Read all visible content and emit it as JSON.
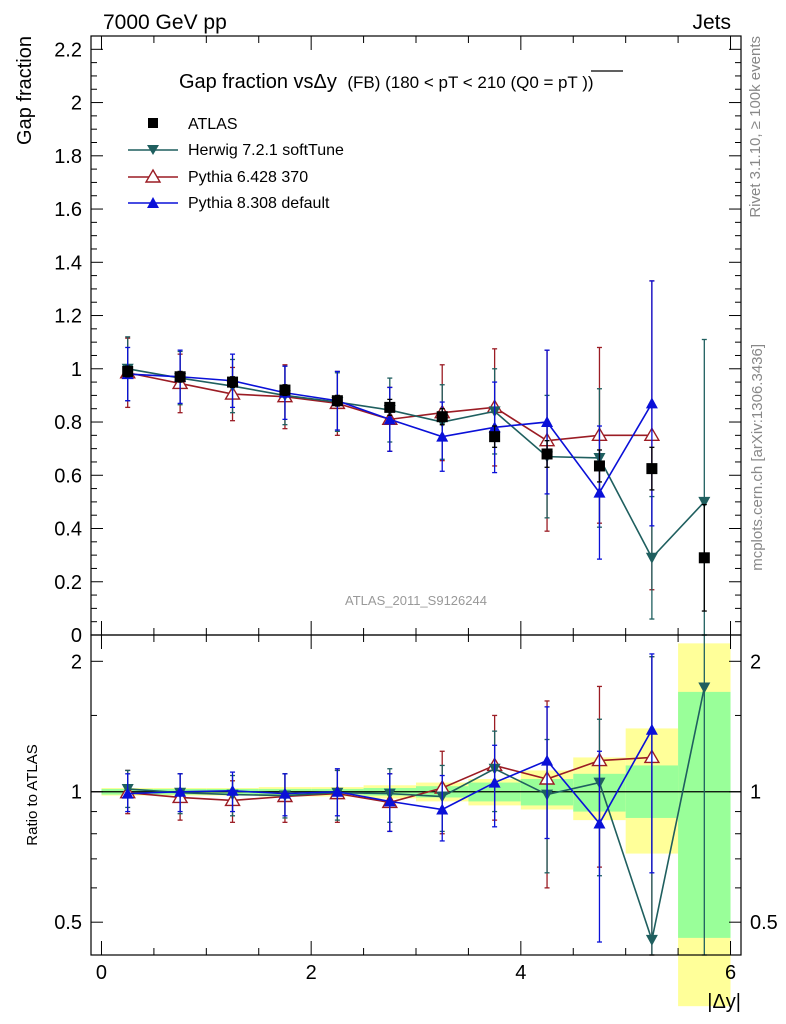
{
  "header": {
    "left": "7000 GeV pp",
    "right": "Jets"
  },
  "title": {
    "main": "Gap fraction vsΔy",
    "sub": "(FB) (180 < pT < 210 (Q0 =",
    "pt": "pT",
    "close": "))"
  },
  "side_labels": {
    "rivet": "Rivet 3.1.10, ≥ 100k events",
    "mcplots": "mcplots.cern.ch [arXiv:1306.3436]"
  },
  "watermark": "ATLAS_2011_S9126244",
  "colors": {
    "atlas": "#000000",
    "herwig": "#1f5f5f",
    "pythia6": "#9b1c24",
    "pythia8": "#0a10d8",
    "band_inner": "#99ff99",
    "band_outer": "#ffff99"
  },
  "chart_data": [
    {
      "type": "scatter",
      "panel": "main",
      "ylabel": "Gap fraction",
      "xlim": [
        -0.1,
        6.1
      ],
      "ylim": [
        0,
        2.25
      ],
      "yticks": [
        "0",
        "0.2",
        "0.4",
        "0.6",
        "0.8",
        "1",
        "1.2",
        "1.4",
        "1.6",
        "1.8",
        "2",
        "2.2"
      ],
      "x": [
        0.25,
        0.75,
        1.25,
        1.75,
        2.25,
        2.75,
        3.25,
        3.75,
        4.25,
        4.75,
        5.25,
        5.75
      ],
      "series": [
        {
          "name": "ATLAS",
          "marker": "square",
          "values": [
            0.99,
            0.97,
            0.95,
            0.92,
            0.88,
            0.855,
            0.82,
            0.745,
            0.68,
            0.635,
            0.625,
            0.29
          ],
          "err": [
            0.02,
            0.02,
            0.02,
            0.02,
            0.02,
            0.03,
            0.03,
            0.04,
            0.05,
            0.06,
            0.08,
            0.2
          ]
        },
        {
          "name": "Herwig 7.2.1 softTune",
          "marker": "triangle-down",
          "values": [
            1.0,
            0.965,
            0.935,
            0.9,
            0.875,
            0.845,
            0.8,
            0.84,
            0.67,
            0.665,
            0.29,
            0.5
          ],
          "err": [
            0.12,
            0.1,
            0.1,
            0.11,
            0.11,
            0.12,
            0.14,
            0.16,
            0.23,
            0.26,
            0.23,
            0.61
          ]
        },
        {
          "name": "Pythia 6.428 370",
          "marker": "triangle-open",
          "values": [
            0.985,
            0.945,
            0.905,
            0.895,
            0.87,
            0.81,
            0.835,
            0.855,
            0.73,
            0.75,
            0.75,
            null
          ],
          "err": [
            0.13,
            0.11,
            0.1,
            0.12,
            0.12,
            0.12,
            0.18,
            0.22,
            0.34,
            0.33,
            0.58,
            0
          ]
        },
        {
          "name": "Pythia 8.308 default",
          "marker": "triangle-up",
          "values": [
            0.98,
            0.97,
            0.955,
            0.91,
            0.88,
            0.81,
            0.745,
            0.78,
            0.8,
            0.535,
            0.87,
            null
          ],
          "err": [
            0.1,
            0.1,
            0.1,
            0.1,
            0.11,
            0.12,
            0.13,
            0.17,
            0.27,
            0.25,
            0.46,
            0
          ]
        }
      ]
    },
    {
      "type": "scatter",
      "panel": "ratio",
      "ylabel": "Ratio to ATLAS",
      "xlabel": "|Δy|",
      "xlim": [
        -0.1,
        6.1
      ],
      "ylim": [
        0.42,
        2.3
      ],
      "log_y": true,
      "yticks": [
        "0.5",
        "1",
        "2"
      ],
      "xticks": [
        "0",
        "2",
        "4",
        "6"
      ],
      "x": [
        0.25,
        0.75,
        1.25,
        1.75,
        2.25,
        2.75,
        3.25,
        3.75,
        4.25,
        4.75,
        5.25,
        5.75
      ],
      "band_inner": [
        [
          0.985,
          1.015
        ],
        [
          0.985,
          1.015
        ],
        [
          0.985,
          1.015
        ],
        [
          0.985,
          1.015
        ],
        [
          0.985,
          1.015
        ],
        [
          0.98,
          1.02
        ],
        [
          0.97,
          1.03
        ],
        [
          0.95,
          1.05
        ],
        [
          0.93,
          1.07
        ],
        [
          0.9,
          1.1
        ],
        [
          0.87,
          1.15
        ],
        [
          0.46,
          1.7
        ]
      ],
      "band_outer": [
        [
          0.98,
          1.02
        ],
        [
          0.98,
          1.02
        ],
        [
          0.98,
          1.02
        ],
        [
          0.975,
          1.025
        ],
        [
          0.975,
          1.025
        ],
        [
          0.965,
          1.035
        ],
        [
          0.95,
          1.05
        ],
        [
          0.93,
          1.07
        ],
        [
          0.91,
          1.12
        ],
        [
          0.86,
          1.2
        ],
        [
          0.72,
          1.4
        ],
        [
          0.32,
          2.2
        ]
      ],
      "series": [
        {
          "name": "Herwig 7.2.1 softTune",
          "values": [
            1.015,
            0.995,
            0.985,
            0.98,
            0.995,
            0.99,
            0.975,
            1.13,
            0.985,
            1.05,
            0.455,
            1.74
          ],
          "lo": [
            0.92,
            0.89,
            0.88,
            0.87,
            0.86,
            0.85,
            0.81,
            0.9,
            0.65,
            0.64,
            0.2,
            0.2
          ],
          "hi": [
            1.12,
            1.1,
            1.09,
            1.1,
            1.12,
            1.13,
            1.15,
            1.38,
            1.32,
            1.47,
            2.05,
            3.0
          ]
        },
        {
          "name": "Pythia 6.428 370",
          "values": [
            0.995,
            0.97,
            0.955,
            0.975,
            0.99,
            0.945,
            1.02,
            1.15,
            1.07,
            1.18,
            1.2,
            null
          ],
          "lo": [
            0.89,
            0.86,
            0.85,
            0.85,
            0.85,
            0.81,
            0.8,
            0.86,
            0.6,
            0.67,
            0.2,
            null
          ],
          "hi": [
            1.12,
            1.1,
            1.06,
            1.1,
            1.12,
            1.1,
            1.24,
            1.5,
            1.62,
            1.75,
            2.05,
            null
          ]
        },
        {
          "name": "Pythia 8.308 default",
          "values": [
            0.99,
            1.0,
            1.005,
            0.99,
            1.0,
            0.95,
            0.91,
            1.05,
            1.18,
            0.845,
            1.39,
            null
          ],
          "lo": [
            0.9,
            0.9,
            0.9,
            0.88,
            0.88,
            0.81,
            0.77,
            0.83,
            0.78,
            0.45,
            0.65,
            null
          ],
          "hi": [
            1.1,
            1.1,
            1.11,
            1.1,
            1.13,
            1.1,
            1.09,
            1.28,
            1.57,
            1.24,
            2.08,
            null
          ]
        }
      ]
    }
  ]
}
